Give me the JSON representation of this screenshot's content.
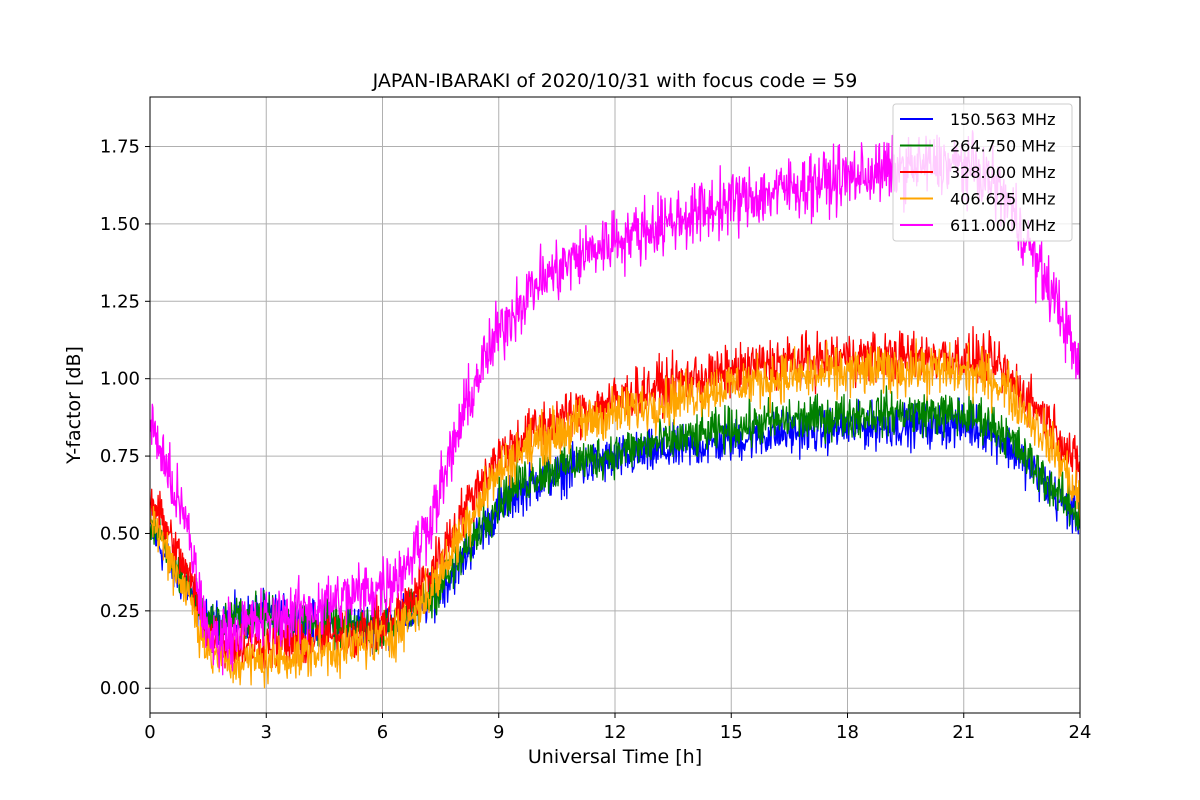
{
  "chart_data": {
    "type": "line",
    "title": "JAPAN-IBARAKI of 2020/10/31 with focus code = 59",
    "xlabel": "Universal Time [h]",
    "ylabel": "Y-factor [dB]",
    "xlim": [
      0,
      24
    ],
    "ylim": [
      -0.08,
      1.91
    ],
    "xticks": [
      0,
      3,
      6,
      9,
      12,
      15,
      18,
      21,
      24
    ],
    "xtick_labels": [
      "0",
      "3",
      "6",
      "9",
      "12",
      "15",
      "18",
      "21",
      "24"
    ],
    "yticks": [
      0.0,
      0.25,
      0.5,
      0.75,
      1.0,
      1.25,
      1.5,
      1.75
    ],
    "ytick_labels": [
      "0.00",
      "0.25",
      "0.50",
      "0.75",
      "1.00",
      "1.25",
      "1.50",
      "1.75"
    ],
    "grid": true,
    "legend_position": "top-right",
    "series": [
      {
        "name": "150.563 MHz",
        "color": "#0000ff",
        "noise": 0.035,
        "x": [
          0,
          0.3,
          0.6,
          1.0,
          1.5,
          2.0,
          3.0,
          4.0,
          5.0,
          6.0,
          6.5,
          7.0,
          7.5,
          8.0,
          8.5,
          9.0,
          9.5,
          10.0,
          11.0,
          12.0,
          13.0,
          14.0,
          15.0,
          16.0,
          17.0,
          18.0,
          19.0,
          20.0,
          21.0,
          21.5,
          22.0,
          22.5,
          23.0,
          23.5,
          24.0
        ],
        "y": [
          0.52,
          0.45,
          0.38,
          0.32,
          0.2,
          0.22,
          0.24,
          0.21,
          0.2,
          0.2,
          0.22,
          0.26,
          0.32,
          0.4,
          0.5,
          0.58,
          0.63,
          0.67,
          0.71,
          0.74,
          0.76,
          0.78,
          0.8,
          0.82,
          0.83,
          0.84,
          0.85,
          0.85,
          0.85,
          0.84,
          0.8,
          0.74,
          0.67,
          0.6,
          0.55
        ]
      },
      {
        "name": "264.750 MHz",
        "color": "#008000",
        "noise": 0.035,
        "x": [
          0,
          0.3,
          0.6,
          1.0,
          1.5,
          2.0,
          3.0,
          4.0,
          5.0,
          6.0,
          6.5,
          7.0,
          7.5,
          8.0,
          8.5,
          9.0,
          9.5,
          10.0,
          11.0,
          12.0,
          13.0,
          14.0,
          15.0,
          16.0,
          17.0,
          18.0,
          19.0,
          20.0,
          21.0,
          21.5,
          22.0,
          22.5,
          23.0,
          23.5,
          24.0
        ],
        "y": [
          0.54,
          0.47,
          0.4,
          0.33,
          0.2,
          0.22,
          0.24,
          0.21,
          0.2,
          0.2,
          0.22,
          0.27,
          0.33,
          0.41,
          0.52,
          0.6,
          0.66,
          0.69,
          0.73,
          0.76,
          0.79,
          0.81,
          0.84,
          0.86,
          0.87,
          0.88,
          0.89,
          0.89,
          0.88,
          0.87,
          0.83,
          0.76,
          0.69,
          0.62,
          0.55
        ]
      },
      {
        "name": "328.000 MHz",
        "color": "#ff0000",
        "noise": 0.04,
        "x": [
          0,
          0.3,
          0.6,
          1.0,
          1.5,
          2.0,
          3.0,
          4.0,
          5.0,
          6.0,
          6.5,
          7.0,
          7.5,
          8.0,
          8.5,
          9.0,
          9.5,
          10.0,
          11.0,
          12.0,
          13.0,
          14.0,
          15.0,
          16.0,
          17.0,
          18.0,
          19.0,
          20.0,
          21.0,
          21.5,
          22.0,
          22.5,
          23.0,
          23.5,
          24.0
        ],
        "y": [
          0.62,
          0.55,
          0.46,
          0.36,
          0.18,
          0.14,
          0.14,
          0.15,
          0.17,
          0.2,
          0.25,
          0.33,
          0.43,
          0.55,
          0.66,
          0.75,
          0.8,
          0.84,
          0.89,
          0.93,
          0.97,
          1.0,
          1.02,
          1.05,
          1.06,
          1.07,
          1.07,
          1.07,
          1.07,
          1.06,
          1.03,
          0.96,
          0.89,
          0.81,
          0.7
        ]
      },
      {
        "name": "406.625 MHz",
        "color": "#ffa500",
        "noise": 0.04,
        "x": [
          0,
          0.3,
          0.6,
          1.0,
          1.5,
          2.0,
          3.0,
          4.0,
          5.0,
          6.0,
          6.5,
          7.0,
          7.5,
          8.0,
          8.5,
          9.0,
          9.5,
          10.0,
          11.0,
          12.0,
          13.0,
          14.0,
          15.0,
          16.0,
          17.0,
          18.0,
          19.0,
          20.0,
          21.0,
          21.5,
          22.0,
          22.5,
          23.0,
          23.5,
          24.0
        ],
        "y": [
          0.56,
          0.48,
          0.4,
          0.3,
          0.12,
          0.08,
          0.09,
          0.11,
          0.13,
          0.16,
          0.2,
          0.27,
          0.37,
          0.5,
          0.61,
          0.7,
          0.76,
          0.8,
          0.85,
          0.89,
          0.92,
          0.95,
          0.98,
          1.0,
          1.01,
          1.02,
          1.03,
          1.03,
          1.02,
          1.01,
          0.98,
          0.91,
          0.83,
          0.74,
          0.6
        ]
      },
      {
        "name": "611.000 MHz",
        "color": "#ff00ff",
        "noise": 0.05,
        "x": [
          0,
          0.2,
          0.5,
          1.0,
          1.5,
          2.0,
          3.0,
          4.0,
          5.0,
          6.0,
          6.5,
          7.0,
          7.5,
          8.0,
          8.5,
          9.0,
          9.5,
          10.0,
          11.0,
          12.0,
          13.0,
          14.0,
          15.0,
          16.0,
          17.0,
          18.0,
          19.0,
          20.0,
          21.0,
          21.5,
          22.0,
          22.5,
          23.0,
          23.5,
          24.0
        ],
        "y": [
          0.85,
          0.8,
          0.68,
          0.5,
          0.15,
          0.18,
          0.22,
          0.25,
          0.29,
          0.33,
          0.38,
          0.48,
          0.64,
          0.85,
          1.02,
          1.15,
          1.24,
          1.31,
          1.39,
          1.45,
          1.49,
          1.53,
          1.57,
          1.6,
          1.63,
          1.65,
          1.67,
          1.69,
          1.69,
          1.66,
          1.6,
          1.48,
          1.34,
          1.22,
          1.02
        ]
      }
    ]
  }
}
